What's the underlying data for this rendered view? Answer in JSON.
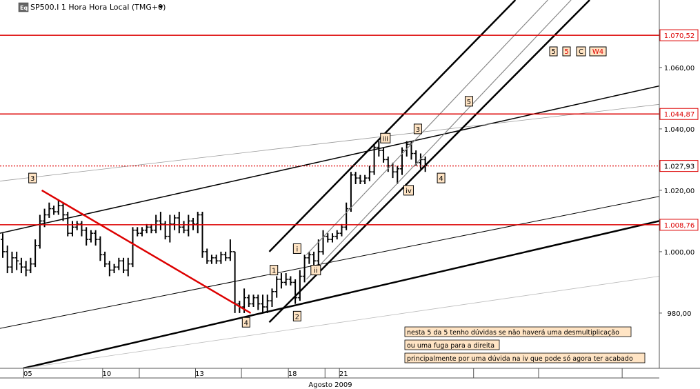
{
  "header": {
    "title": "SP500.I 1 Hora Hora Local (TMG+0)",
    "logo_text": "Eq"
  },
  "colors": {
    "background": "#ffffff",
    "bars": "#000000",
    "hline": "#dd0000",
    "label_fill": "#ffe4c4",
    "label_border": "#000000"
  },
  "chart_data": {
    "type": "bar",
    "subtype": "ohlc",
    "title": "SP500.I 1 Hora Hora Local (TMG+0)",
    "xlabel": "Agosto 2009",
    "ylabel": "",
    "ylim": [
      962,
      1082
    ],
    "xlim": [
      0,
      142
    ],
    "x_ticks": [
      {
        "label": "05",
        "x": 6
      },
      {
        "label": "10",
        "x": 23
      },
      {
        "label": "13",
        "x": 43
      },
      {
        "label": "18",
        "x": 63
      },
      {
        "label": "21",
        "x": 74
      }
    ],
    "y_ticks": [
      {
        "label": "1.060,00",
        "y": 1060
      },
      {
        "label": "1.040,00",
        "y": 1040
      },
      {
        "label": "1.020,00",
        "y": 1020
      },
      {
        "label": "1.000,00",
        "y": 1000
      },
      {
        "label": "980,00",
        "y": 980
      }
    ],
    "horizontal_lines": [
      {
        "label": "1.070,52",
        "y": 1070.52,
        "style": "solid"
      },
      {
        "label": "1.044,87",
        "y": 1044.87,
        "style": "solid"
      },
      {
        "label": "1.027,93",
        "y": 1027.93,
        "style": "dotted"
      },
      {
        "label": "1.008,76",
        "y": 1008.76,
        "style": "solid"
      }
    ],
    "ohlc": [
      [
        0,
        1004,
        1000,
        1006,
        998
      ],
      [
        1,
        1000,
        995,
        1002,
        993
      ],
      [
        2,
        995,
        998,
        1000,
        993
      ],
      [
        3,
        998,
        997,
        1000,
        994
      ],
      [
        4,
        996,
        995,
        998,
        993
      ],
      [
        5,
        995,
        994,
        997,
        992
      ],
      [
        6,
        994,
        996,
        998,
        993
      ],
      [
        7,
        996,
        1002,
        1004,
        995
      ],
      [
        8,
        1002,
        1010,
        1012,
        1001
      ],
      [
        9,
        1010,
        1012,
        1014,
        1008
      ],
      [
        10,
        1012,
        1014,
        1016,
        1011
      ],
      [
        11,
        1014,
        1013,
        1015,
        1012
      ],
      [
        12,
        1013,
        1015,
        1017,
        1012
      ],
      [
        13,
        1015,
        1012,
        1016,
        1010
      ],
      [
        14,
        1012,
        1006,
        1013,
        1005
      ],
      [
        15,
        1006,
        1008,
        1010,
        1005
      ],
      [
        16,
        1008,
        1009,
        1010,
        1007
      ],
      [
        17,
        1009,
        1007,
        1010,
        1005
      ],
      [
        18,
        1007,
        1004,
        1008,
        1002
      ],
      [
        19,
        1004,
        1006,
        1007,
        1003
      ],
      [
        20,
        1006,
        1004,
        1007,
        1002
      ],
      [
        21,
        1004,
        999,
        1005,
        997
      ],
      [
        22,
        999,
        996,
        1000,
        995
      ],
      [
        23,
        996,
        994,
        997,
        992
      ],
      [
        24,
        994,
        995,
        996,
        993
      ],
      [
        25,
        995,
        997,
        998,
        994
      ],
      [
        26,
        997,
        994,
        998,
        993
      ],
      [
        27,
        994,
        996,
        998,
        992
      ],
      [
        28,
        996,
        1007,
        1008,
        995
      ],
      [
        29,
        1007,
        1006,
        1008,
        1005
      ],
      [
        30,
        1006,
        1007,
        1008,
        1005
      ],
      [
        31,
        1007,
        1008,
        1009,
        1006
      ],
      [
        32,
        1008,
        1007,
        1009,
        1006
      ],
      [
        33,
        1007,
        1010,
        1012,
        1006
      ],
      [
        34,
        1010,
        1009,
        1013,
        1007
      ],
      [
        35,
        1009,
        1005,
        1010,
        1004
      ],
      [
        36,
        1005,
        1009,
        1012,
        1003
      ],
      [
        37,
        1009,
        1011,
        1012,
        1007
      ],
      [
        38,
        1011,
        1008,
        1013,
        1006
      ],
      [
        39,
        1008,
        1007,
        1010,
        1006
      ],
      [
        40,
        1007,
        1010,
        1012,
        1005
      ],
      [
        41,
        1010,
        1009,
        1011,
        1007
      ],
      [
        42,
        1009,
        1012,
        1013,
        1006
      ],
      [
        43,
        1012,
        1000,
        1013,
        998
      ],
      [
        44,
        1000,
        997,
        1001,
        996
      ],
      [
        45,
        997,
        998,
        999,
        996
      ],
      [
        46,
        998,
        997,
        999,
        996
      ],
      [
        47,
        997,
        999,
        1000,
        996
      ],
      [
        48,
        999,
        998,
        1000,
        997
      ],
      [
        49,
        998,
        1000,
        1004,
        997
      ],
      [
        50,
        1000,
        983,
        1000,
        980
      ],
      [
        51,
        983,
        982,
        984,
        980
      ],
      [
        52,
        982,
        985,
        988,
        980
      ],
      [
        53,
        985,
        983,
        986,
        982
      ],
      [
        54,
        983,
        985,
        986,
        982
      ],
      [
        55,
        985,
        983,
        986,
        981
      ],
      [
        56,
        983,
        982,
        986,
        980
      ],
      [
        57,
        982,
        984,
        986,
        980
      ],
      [
        58,
        984,
        987,
        988,
        982
      ],
      [
        59,
        987,
        991,
        992,
        985
      ],
      [
        60,
        991,
        990,
        993,
        988
      ],
      [
        61,
        990,
        991,
        993,
        989
      ],
      [
        62,
        991,
        990,
        992,
        989
      ],
      [
        63,
        990,
        985,
        991,
        983
      ],
      [
        64,
        985,
        992,
        994,
        984
      ],
      [
        65,
        992,
        998,
        999,
        990
      ],
      [
        66,
        998,
        999,
        1000,
        996
      ],
      [
        67,
        999,
        997,
        1000,
        995
      ],
      [
        68,
        997,
        1000,
        1004,
        995
      ],
      [
        69,
        1000,
        1005,
        1007,
        999
      ],
      [
        70,
        1005,
        1004,
        1006,
        1003
      ],
      [
        71,
        1004,
        1005,
        1006,
        1003
      ],
      [
        72,
        1005,
        1006,
        1007,
        1004
      ],
      [
        73,
        1006,
        1008,
        1009,
        1005
      ],
      [
        74,
        1008,
        1014,
        1016,
        1007
      ],
      [
        75,
        1014,
        1025,
        1026,
        1013
      ],
      [
        76,
        1025,
        1024,
        1026,
        1022
      ],
      [
        77,
        1024,
        1023,
        1025,
        1022
      ],
      [
        78,
        1023,
        1024,
        1025,
        1022
      ],
      [
        79,
        1024,
        1026,
        1028,
        1023
      ],
      [
        80,
        1026,
        1034,
        1035,
        1025
      ],
      [
        81,
        1034,
        1033,
        1036,
        1031
      ],
      [
        82,
        1033,
        1030,
        1034,
        1029
      ],
      [
        83,
        1030,
        1028,
        1031,
        1026
      ],
      [
        84,
        1028,
        1026,
        1029,
        1024
      ],
      [
        85,
        1026,
        1027,
        1028,
        1022
      ],
      [
        86,
        1027,
        1033,
        1034,
        1025
      ],
      [
        87,
        1033,
        1035,
        1036,
        1031
      ],
      [
        88,
        1035,
        1032,
        1036,
        1030
      ],
      [
        89,
        1032,
        1029,
        1033,
        1028
      ],
      [
        90,
        1029,
        1030,
        1032,
        1027
      ],
      [
        91,
        1030,
        1028,
        1031,
        1026
      ]
    ],
    "trend_lines": [
      {
        "name": "lower-channel-thick",
        "color": "#000000",
        "width": 2.5,
        "from": [
          5,
          962
        ],
        "to": [
          142,
          1010
        ]
      },
      {
        "name": "lower-channel-thin",
        "color": "#000000",
        "width": 1,
        "from": [
          0,
          975
        ],
        "to": [
          142,
          1018
        ]
      },
      {
        "name": "upper-channel-line",
        "color": "#000000",
        "width": 1.5,
        "from": [
          0,
          1006
        ],
        "to": [
          142,
          1054
        ]
      },
      {
        "name": "upper-channel-faint",
        "color": "#999999",
        "width": 0.8,
        "from": [
          0,
          1023
        ],
        "to": [
          142,
          1048
        ]
      },
      {
        "name": "thin-grey-bottom",
        "color": "#bbbbbb",
        "width": 0.8,
        "from": [
          5,
          962
        ],
        "to": [
          142,
          992
        ]
      },
      {
        "name": "steep-left",
        "color": "#000000",
        "width": 2.5,
        "from": [
          58,
          1000
        ],
        "to": [
          111,
          1082
        ]
      },
      {
        "name": "steep-right",
        "color": "#000000",
        "width": 2.5,
        "from": [
          58,
          977
        ],
        "to": [
          127,
          1082
        ]
      },
      {
        "name": "steep-mid1",
        "color": "#888888",
        "width": 1.2,
        "from": [
          66,
          999
        ],
        "to": [
          118,
          1082
        ]
      },
      {
        "name": "steep-mid2",
        "color": "#888888",
        "width": 1.2,
        "from": [
          66,
          991
        ],
        "to": [
          123,
          1082
        ]
      },
      {
        "name": "red-downtrend",
        "color": "#dd0000",
        "width": 2.5,
        "from": [
          9,
          1020
        ],
        "to": [
          54,
          980
        ]
      }
    ],
    "wave_labels": [
      {
        "text": "3",
        "x": 7,
        "y": 1024
      },
      {
        "text": "4",
        "x": 53,
        "y": 977
      },
      {
        "text": "1",
        "x": 59,
        "y": 994
      },
      {
        "text": "2",
        "x": 64,
        "y": 979
      },
      {
        "text": "i",
        "x": 64,
        "y": 1001
      },
      {
        "text": "ii",
        "x": 68,
        "y": 994
      },
      {
        "text": "iii",
        "x": 83,
        "y": 1037
      },
      {
        "text": "iv",
        "x": 88,
        "y": 1020
      },
      {
        "text": "3",
        "x": 90,
        "y": 1040
      },
      {
        "text": "4",
        "x": 95,
        "y": 1024
      },
      {
        "text": "5",
        "x": 101,
        "y": 1049
      }
    ],
    "legend_labels": [
      "5",
      "5",
      "C",
      "W4"
    ],
    "annotations": [
      "nesta 5 da 5 tenho dúvidas se não haverá uma desmultiplicação",
      "ou uma fuga para a direita",
      "principalmente por uma dúvida na iv que pode só agora ter acabado"
    ]
  }
}
